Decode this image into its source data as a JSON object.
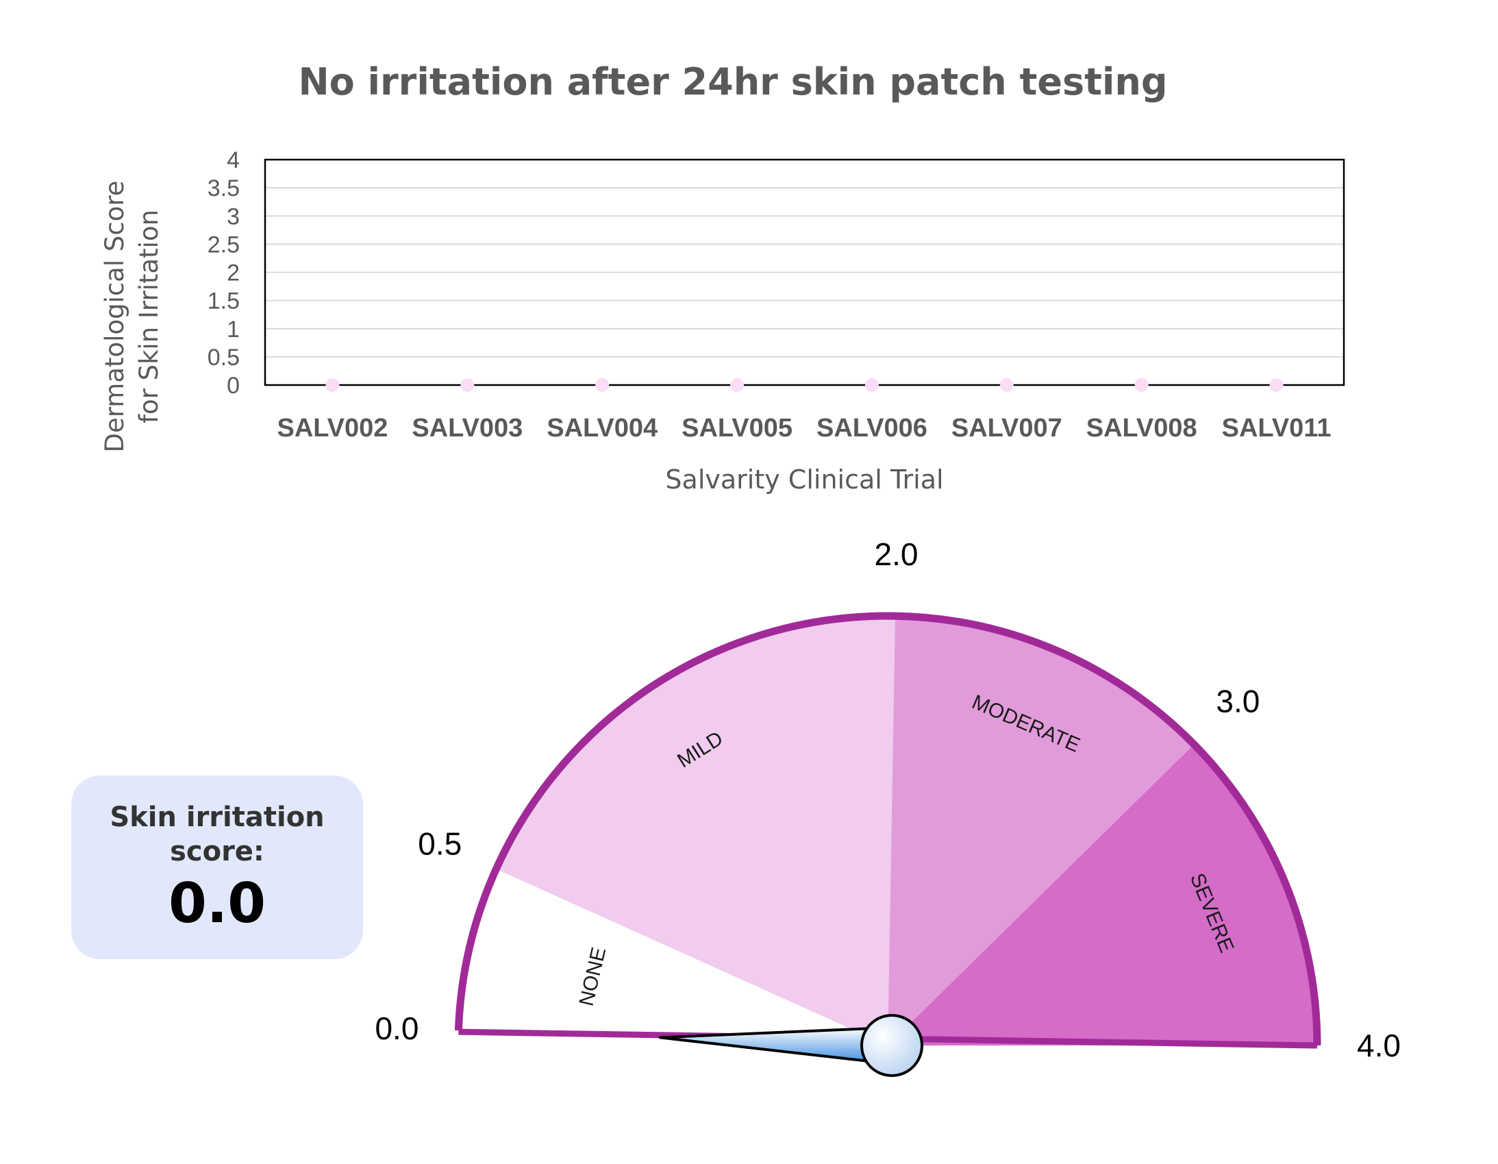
{
  "title": "No irritation after 24hr skin patch testing",
  "chart_data": [
    {
      "type": "scatter",
      "title": "No irritation after 24hr skin patch testing",
      "xlabel": "Salvarity Clinical Trial",
      "ylabel": "Dermatological Score for Skin Irritation",
      "ylabel_lines": [
        "Dermatological Score",
        "for Skin Irritation"
      ],
      "categories": [
        "SALV002",
        "SALV003",
        "SALV004",
        "SALV005",
        "SALV006",
        "SALV007",
        "SALV008",
        "SALV011"
      ],
      "values": [
        0,
        0,
        0,
        0,
        0,
        0,
        0,
        0
      ],
      "ylim": [
        0,
        4
      ],
      "yticks": [
        "0",
        "0.5",
        "1",
        "1.5",
        "2",
        "2.5",
        "3",
        "3.5",
        "4"
      ],
      "grid": true,
      "legend": "none",
      "colors": {
        "marker": "#fcdcf6",
        "axis": "#000000",
        "grid": "#d9d9d9",
        "text": "#595959"
      }
    },
    {
      "type": "gauge",
      "value": 0.0,
      "range": [
        0.0,
        4.0
      ],
      "tick_labels": [
        {
          "value": 0.0,
          "label": "0.0"
        },
        {
          "value": 0.5,
          "label": "0.5"
        },
        {
          "value": 2.0,
          "label": "2.0"
        },
        {
          "value": 3.0,
          "label": "3.0"
        },
        {
          "value": 4.0,
          "label": "4.0"
        }
      ],
      "bands": [
        {
          "label": "NONE",
          "from": 0.0,
          "to": 0.5,
          "color": "#ffffff"
        },
        {
          "label": "MILD",
          "from": 0.5,
          "to": 2.0,
          "color": "#f1ccee"
        },
        {
          "label": "MODERATE",
          "from": 2.0,
          "to": 3.0,
          "color": "#e29bda"
        },
        {
          "label": "SEVERE",
          "from": 3.0,
          "to": 4.0,
          "color": "#d46cc8"
        }
      ],
      "colors": {
        "rim": "#a12a98",
        "needle": "#3b8de0",
        "hub": "#bcd4f2"
      }
    }
  ],
  "score_card": {
    "label": "Skin irritation score:",
    "value": "0.0"
  }
}
